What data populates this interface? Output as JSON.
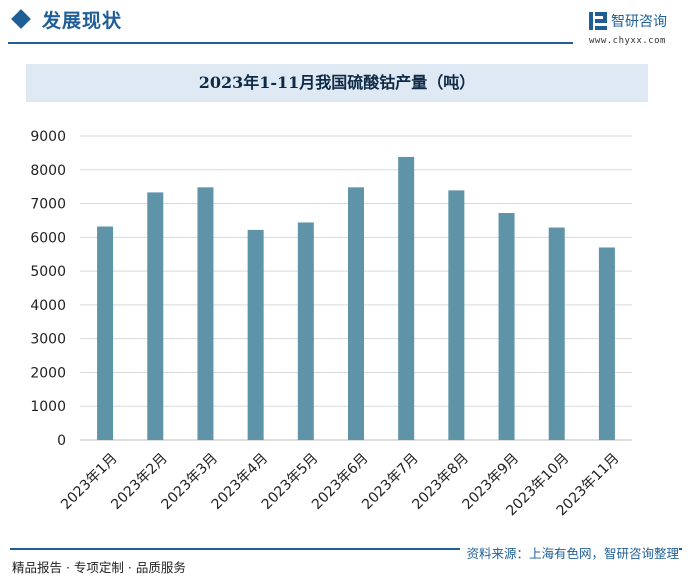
{
  "header": {
    "section_title": "发展现状",
    "brand_name": "智研咨询",
    "brand_url": "www.chyxx.com"
  },
  "colors": {
    "accent": "#1f5f96",
    "bar": "#5f93a8",
    "title_band": "#dfe9f3",
    "grid": "#d9d9d9"
  },
  "chart_data": {
    "type": "bar",
    "title": "2023年1-11月我国硫酸钴产量（吨）",
    "categories": [
      "2023年1月",
      "2023年2月",
      "2023年3月",
      "2023年4月",
      "2023年5月",
      "2023年6月",
      "2023年7月",
      "2023年8月",
      "2023年9月",
      "2023年10月",
      "2023年11月"
    ],
    "values": [
      6320,
      7330,
      7480,
      6220,
      6440,
      7480,
      8380,
      7390,
      6720,
      6290,
      5700
    ],
    "ylim": [
      0,
      9000
    ],
    "yticks": [
      "0",
      "1000",
      "2000",
      "3000",
      "4000",
      "5000",
      "6000",
      "7000",
      "8000",
      "9000"
    ],
    "grid": true,
    "legend": "none"
  },
  "footer": {
    "left": "精品报告 · 专项定制 · 品质服务",
    "right": "资料来源：上海有色网，智研咨询整理"
  }
}
